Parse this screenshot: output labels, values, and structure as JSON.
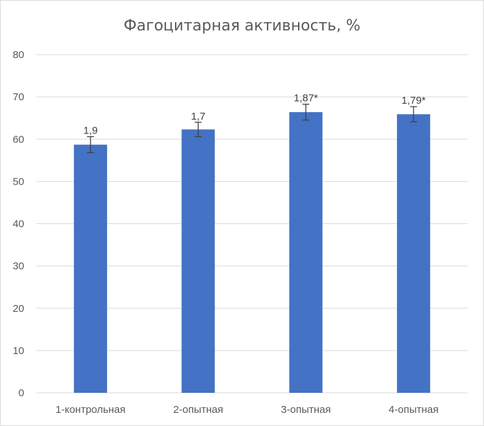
{
  "chart_data": {
    "type": "bar",
    "title": "Фагоцитарная активность, %",
    "categories": [
      "1-контрольная",
      "2-опытная",
      "3-опытная",
      "4-опытная"
    ],
    "values": [
      58.7,
      62.3,
      66.4,
      65.9
    ],
    "error_bars": [
      1.9,
      1.7,
      1.87,
      1.79
    ],
    "data_labels": [
      "1,9",
      "1,7",
      "1,87*",
      "1,79*"
    ],
    "ylim": [
      0,
      80
    ],
    "y_ticks": [
      "0",
      "10",
      "20",
      "30",
      "40",
      "50",
      "60",
      "70",
      "80"
    ],
    "grid": true,
    "bar_color": "#4472C4",
    "grid_color": "#d9d9d9",
    "errorbar_color": "#404040"
  }
}
